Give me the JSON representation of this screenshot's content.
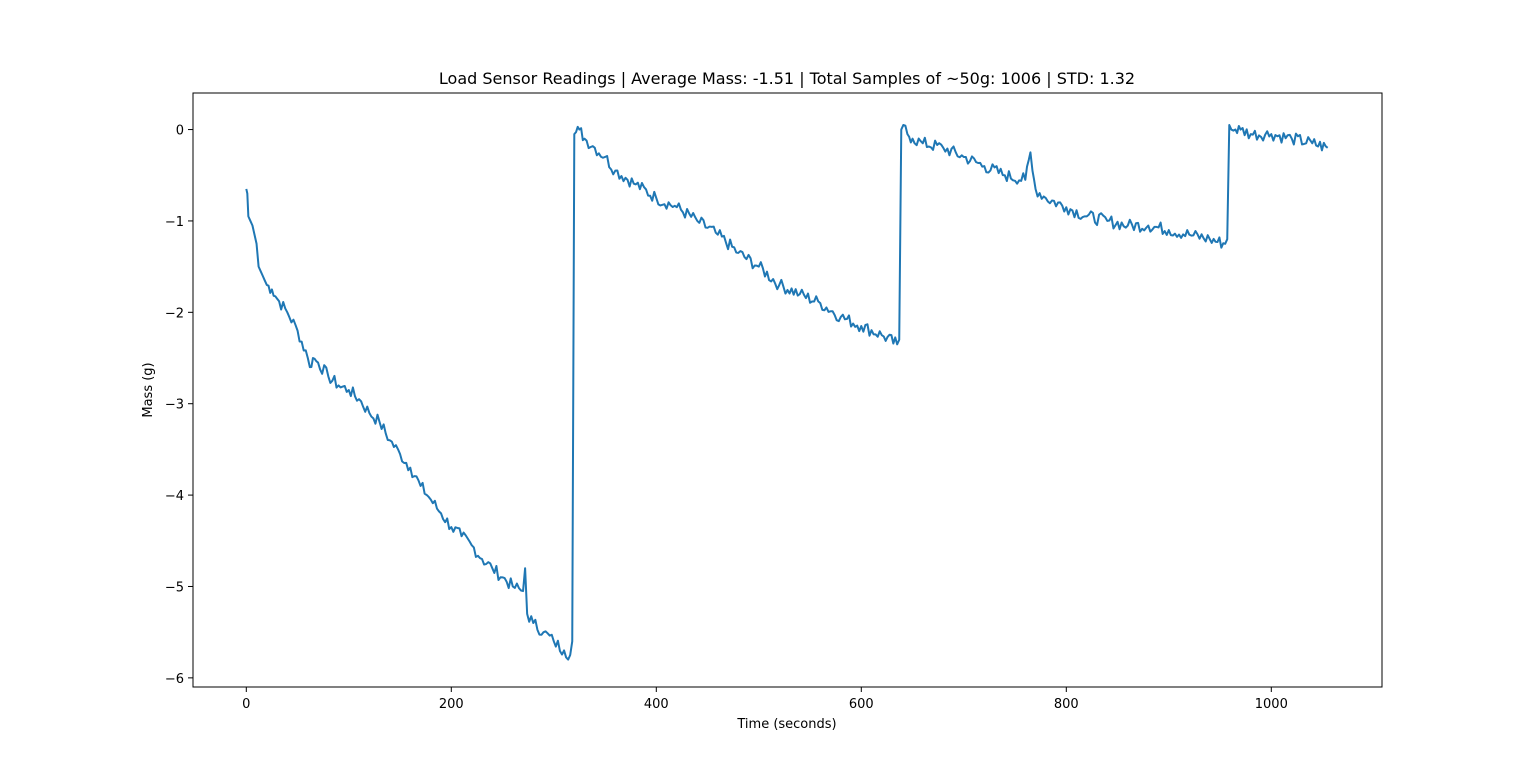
{
  "chart_data": {
    "type": "line",
    "title": "Load Sensor Readings  | Average Mass: -1.51 | Total Samples of ~50g: 1006 | STD: 1.32",
    "xlabel": "Time (seconds)",
    "ylabel": "Mass (g)",
    "xlim": [
      -52,
      1108
    ],
    "ylim": [
      -6.1,
      0.4
    ],
    "xticks": [
      0,
      200,
      400,
      600,
      800,
      1000
    ],
    "xtick_labels": [
      "0",
      "200",
      "400",
      "600",
      "800",
      "1000"
    ],
    "yticks": [
      0,
      -1,
      -2,
      -3,
      -4,
      -5,
      -6
    ],
    "ytick_labels": [
      "0",
      "−1",
      "−2",
      "−3",
      "−4",
      "−5",
      "−6"
    ],
    "grid": false,
    "line_color": "#1f77b4",
    "series": [
      {
        "x": [
          0,
          1,
          2,
          4,
          6,
          8,
          10,
          12,
          14,
          16,
          20,
          25,
          30,
          40,
          50,
          60,
          62,
          65,
          70,
          80,
          90,
          100,
          110,
          120,
          130,
          140,
          150,
          160,
          170,
          180,
          190,
          200,
          210,
          220,
          230,
          240,
          250,
          260,
          270,
          272,
          274,
          280,
          290,
          300,
          310,
          316,
          318,
          320,
          325,
          330,
          340,
          350,
          360,
          380,
          400,
          420,
          440,
          460,
          480,
          500,
          520,
          540,
          560,
          580,
          600,
          620,
          635,
          637,
          639,
          641,
          645,
          650,
          660,
          680,
          700,
          720,
          740,
          760,
          765,
          767,
          770,
          780,
          800,
          820,
          840,
          860,
          880,
          900,
          920,
          940,
          955,
          957,
          959,
          961,
          965,
          970,
          980,
          1000,
          1020,
          1040,
          1055
        ],
        "y": [
          -0.65,
          -0.7,
          -0.95,
          -1.0,
          -1.05,
          -1.15,
          -1.25,
          -1.5,
          -1.55,
          -1.6,
          -1.7,
          -1.75,
          -1.85,
          -2.0,
          -2.2,
          -2.5,
          -2.6,
          -2.5,
          -2.55,
          -2.7,
          -2.8,
          -2.85,
          -2.95,
          -3.1,
          -3.2,
          -3.4,
          -3.55,
          -3.7,
          -3.9,
          -4.05,
          -4.2,
          -4.35,
          -4.45,
          -4.55,
          -4.7,
          -4.8,
          -4.9,
          -5.0,
          -5.05,
          -4.8,
          -5.3,
          -5.4,
          -5.5,
          -5.6,
          -5.7,
          -5.75,
          -5.6,
          -0.05,
          0.0,
          -0.1,
          -0.2,
          -0.3,
          -0.45,
          -0.6,
          -0.75,
          -0.85,
          -1.0,
          -1.15,
          -1.35,
          -1.5,
          -1.7,
          -1.8,
          -1.9,
          -2.05,
          -2.15,
          -2.25,
          -2.35,
          -2.3,
          0.0,
          0.05,
          -0.05,
          -0.1,
          -0.15,
          -0.2,
          -0.3,
          -0.4,
          -0.5,
          -0.55,
          -0.25,
          -0.45,
          -0.65,
          -0.75,
          -0.85,
          -0.95,
          -1.0,
          -1.05,
          -1.05,
          -1.1,
          -1.15,
          -1.2,
          -1.25,
          -1.2,
          0.05,
          0.0,
          0.0,
          0.0,
          -0.05,
          -0.05,
          -0.1,
          -0.15,
          -0.2
        ]
      }
    ]
  }
}
